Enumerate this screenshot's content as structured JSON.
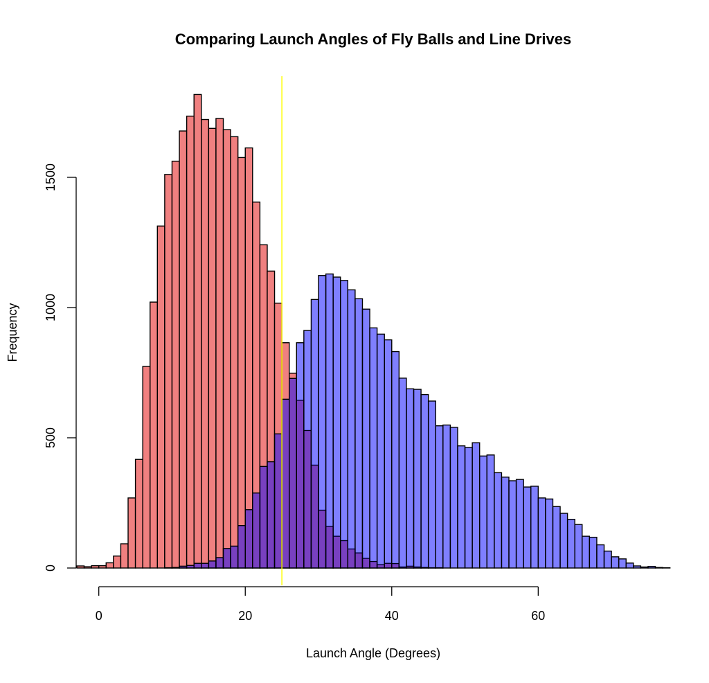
{
  "chart_data": {
    "type": "bar",
    "subtype": "overlapping-histogram",
    "title": "Comparing Launch Angles of Fly Balls and Line Drives",
    "xlabel": "Launch Angle (Degrees)",
    "ylabel": "Frequency",
    "xlim": [
      -3,
      78
    ],
    "ylim": [
      0,
      1850
    ],
    "x_ticks": [
      0,
      20,
      40,
      60
    ],
    "y_ticks": [
      0,
      500,
      1000,
      1500
    ],
    "bin_width": 1,
    "grid": false,
    "legend": null,
    "reference_line": {
      "orientation": "vertical",
      "x": 25,
      "color": "#FFFF00"
    },
    "series": [
      {
        "name": "Line Drives",
        "color": "#F08080",
        "bin_start": -3,
        "values": [
          8,
          5,
          9,
          9,
          20,
          46,
          93,
          269,
          417,
          774,
          1021,
          1313,
          1511,
          1562,
          1678,
          1735,
          1818,
          1722,
          1688,
          1726,
          1683,
          1656,
          1576,
          1613,
          1405,
          1241,
          1140,
          1017,
          865,
          748,
          644,
          528,
          395,
          222,
          160,
          122,
          105,
          73,
          58,
          37,
          25,
          13,
          18,
          17,
          4,
          7,
          4,
          2,
          1,
          1,
          0
        ]
      },
      {
        "name": "Fly Balls",
        "color": "#8080FF",
        "bin_start": -3,
        "values": [
          0,
          0,
          0,
          0,
          0,
          0,
          0,
          0,
          0,
          0,
          0,
          0,
          1,
          2,
          7,
          10,
          18,
          18,
          27,
          40,
          75,
          84,
          163,
          224,
          288,
          390,
          408,
          515,
          648,
          728,
          865,
          912,
          1031,
          1123,
          1129,
          1117,
          1104,
          1068,
          1034,
          994,
          922,
          898,
          876,
          831,
          729,
          688,
          686,
          666,
          641,
          546,
          549,
          540,
          469,
          463,
          481,
          430,
          434,
          366,
          349,
          335,
          340,
          311,
          314,
          269,
          265,
          236,
          210,
          187,
          167,
          122,
          118,
          89,
          65,
          43,
          35,
          19,
          8,
          4,
          6,
          2,
          1
        ]
      }
    ],
    "overlap_color": "#7B3FC8"
  }
}
